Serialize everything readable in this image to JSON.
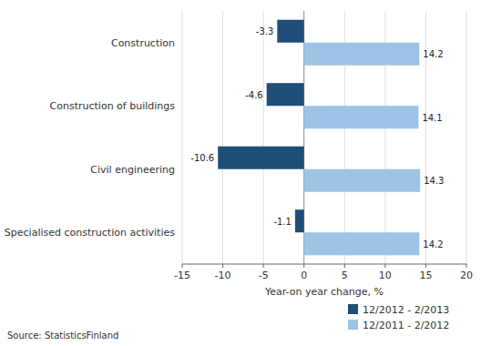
{
  "chart_data": {
    "type": "bar",
    "orientation": "horizontal",
    "categories": [
      "Construction",
      "Construction of buildings",
      "Civil engineering",
      "Specialised construction activities"
    ],
    "series": [
      {
        "name": "12/2012 - 2/2013",
        "color": "#1F4E79",
        "values": [
          -3.3,
          -4.6,
          -10.6,
          -1.1
        ]
      },
      {
        "name": "12/2011 - 2/2012",
        "color": "#9DC3E6",
        "values": [
          14.2,
          14.1,
          14.3,
          14.2
        ]
      }
    ],
    "xlabel": "Year-on year change, %",
    "xlim": [
      -15,
      20
    ],
    "xticks": [
      -15,
      -10,
      -5,
      0,
      5,
      10,
      15,
      20
    ],
    "grid": true,
    "legend": "lower right",
    "data_labels": true,
    "annotations": [
      "Source: StatisticsFinland"
    ]
  }
}
